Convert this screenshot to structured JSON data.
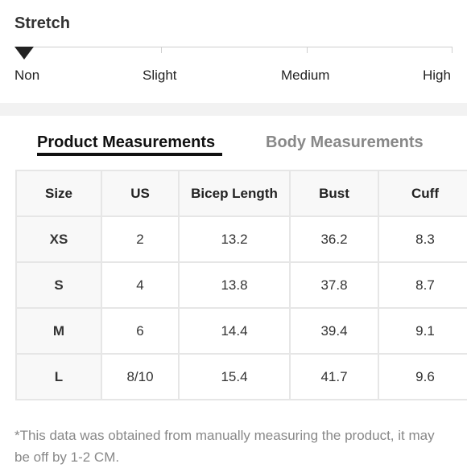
{
  "stretch": {
    "title": "Stretch",
    "selected": "Non",
    "levels": [
      "Non",
      "Slight",
      "Medium",
      "High"
    ]
  },
  "tabs": {
    "active": "Product Measurements",
    "inactive": "Body Measurements"
  },
  "table": {
    "headers": [
      "Size",
      "US",
      "Bicep Length",
      "Bust",
      "Cuff"
    ],
    "rows": [
      [
        "XS",
        "2",
        "13.2",
        "36.2",
        "8.3"
      ],
      [
        "S",
        "4",
        "13.8",
        "37.8",
        "8.7"
      ],
      [
        "M",
        "6",
        "14.4",
        "39.4",
        "9.1"
      ],
      [
        "L",
        "8/10",
        "15.4",
        "41.7",
        "9.6"
      ]
    ]
  },
  "note": "*This data was obtained from manually measuring the product, it may be off by 1-2 CM."
}
